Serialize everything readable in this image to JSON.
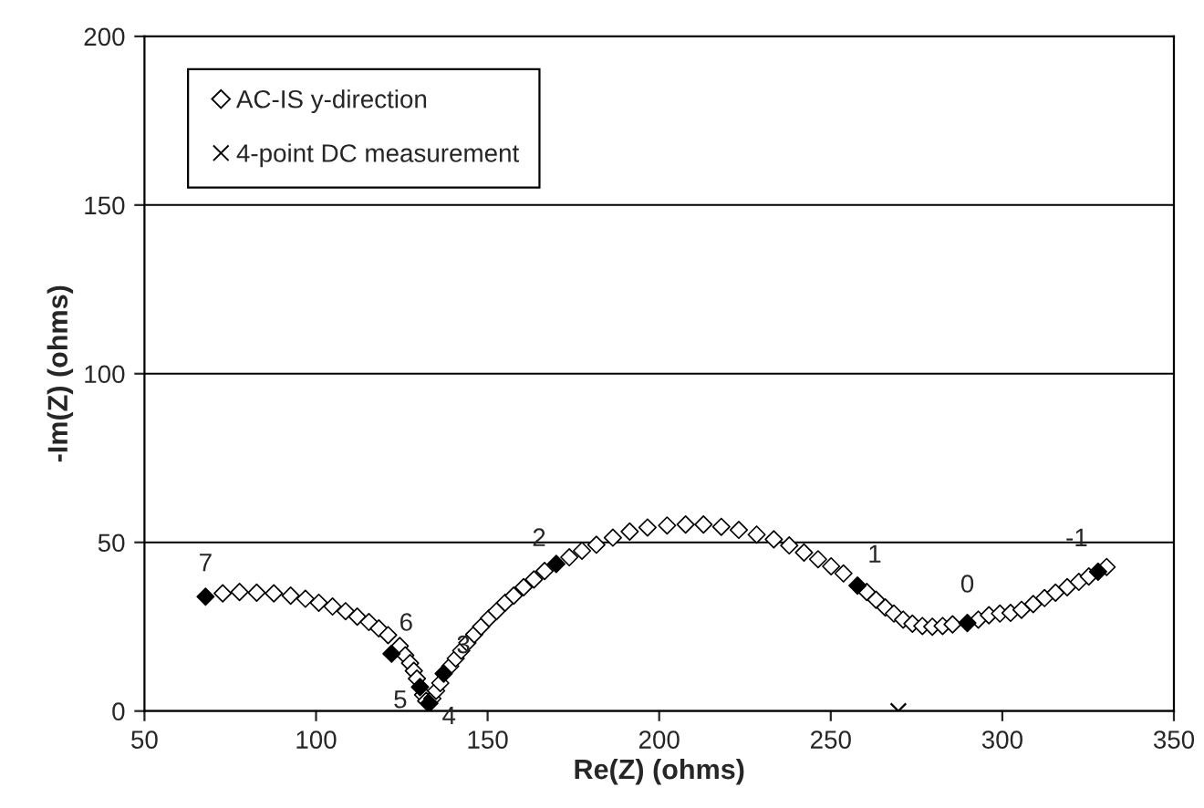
{
  "chart_data": {
    "type": "scatter",
    "xlabel": "Re(Z) (ohms)",
    "ylabel": "-Im(Z) (ohms)",
    "xlim": [
      50,
      350
    ],
    "xticks": [
      50,
      100,
      150,
      200,
      250,
      300,
      350
    ],
    "ylim": [
      0,
      200
    ],
    "yticks": [
      0,
      50,
      100,
      150,
      200
    ],
    "grid": "y",
    "legend": "top left",
    "series": [
      {
        "name": "AC-IS y-direction",
        "color": "#000000",
        "marker": "diamond",
        "x": [
          72.8,
          77.7,
          82.7,
          87.7,
          92.6,
          96.9,
          100.8,
          104.8,
          108.6,
          112,
          115.4,
          118.3,
          121,
          124.4,
          126,
          127.4,
          128.5,
          129.4,
          131.2,
          132.1,
          133.9,
          135,
          136.2,
          139.1,
          140.7,
          142.3,
          144.1,
          146.1,
          148.1,
          150.4,
          152.6,
          155.1,
          157.6,
          160.5,
          163.5,
          166.6,
          173.8,
          177.5,
          181.7,
          186.5,
          191.4,
          196.6,
          202.3,
          207.7,
          212.9,
          218.1,
          223.2,
          228.4,
          233.4,
          237.9,
          242.2,
          246.3,
          250.1,
          253.7,
          260.5,
          263.2,
          265.9,
          268.4,
          271.1,
          273.8,
          276.7,
          279.6,
          282.6,
          285.5,
          293,
          296.1,
          299.3,
          302.4,
          305.6,
          309,
          312.3,
          315.5,
          318.9,
          322.3,
          325.2,
          330.4
        ],
        "values": [
          34.9,
          35.3,
          35.1,
          34.9,
          34.2,
          33.3,
          32.1,
          31,
          29.6,
          28,
          26.4,
          24.5,
          22.5,
          19.3,
          16.5,
          14.2,
          11.9,
          9.6,
          4.8,
          3,
          3.7,
          6,
          8.3,
          13.3,
          15.6,
          17.9,
          20.2,
          22.7,
          25,
          27.5,
          29.6,
          32.1,
          34.2,
          36.7,
          39,
          41.5,
          45.6,
          47.5,
          49.3,
          51.4,
          53.2,
          54.4,
          55,
          55.3,
          55.3,
          54.6,
          53.7,
          52.3,
          50.9,
          49.1,
          47,
          45,
          42.9,
          40.8,
          35.3,
          33,
          30.7,
          28.9,
          27.1,
          25.9,
          25.2,
          25,
          25.2,
          25.7,
          27.1,
          28.4,
          28.9,
          29.1,
          30,
          31.7,
          33.5,
          35.1,
          36.7,
          38.3,
          39.9,
          42.7
        ]
      },
      {
        "color": "#000000",
        "marker": "diamond",
        "x": [
          67.8,
          122,
          130.3,
          133,
          137.2,
          170,
          257.8,
          289.8,
          327.9
        ],
        "values": [
          33.9,
          17,
          7.1,
          2.3,
          11.1,
          43.6,
          37.2,
          26.1,
          41.3
        ]
      },
      {
        "name": "4-point DC measurement",
        "color": "#000000",
        "marker": "cross",
        "x": [
          269.7
        ],
        "values": [
          0
        ]
      }
    ],
    "annotations": [
      {
        "text": "7",
        "x": 67.8,
        "y": 33.9
      },
      {
        "text": "6",
        "x": 122,
        "y": 17
      },
      {
        "text": "5",
        "x": 130.3,
        "y": 7.1
      },
      {
        "text": "4",
        "x": 133,
        "y": 2.3
      },
      {
        "text": "3",
        "x": 137.2,
        "y": 11.1
      },
      {
        "text": "2",
        "x": 170,
        "y": 43.6
      },
      {
        "text": "1",
        "x": 257.8,
        "y": 37.2
      },
      {
        "text": "0",
        "x": 289.8,
        "y": 26.1
      },
      {
        "text": "-1",
        "x": 327.9,
        "y": 41.3
      }
    ]
  }
}
